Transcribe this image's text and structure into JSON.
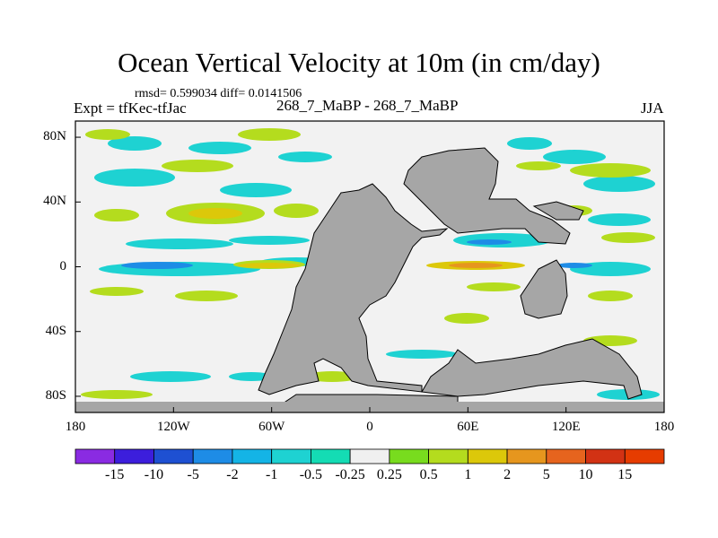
{
  "title": "Ocean Vertical Velocity at 10m (in cm/day)",
  "stats": "rmsd= 0.599034 diff= 0.0141506",
  "experiment": "Expt = tfKec-tfJac",
  "center_label": "268_7_MaBP - 268_7_MaBP",
  "season": "JJA",
  "map": {
    "lat_range": [
      -90,
      90
    ],
    "lon_range": [
      -180,
      180
    ],
    "lat_ticks": [
      "80N",
      "40N",
      "0",
      "40S",
      "80S"
    ],
    "lon_ticks": [
      "180",
      "120W",
      "60W",
      "0",
      "60E",
      "120E",
      "180"
    ],
    "land_color": "#a6a6a6",
    "ocean_background": "#f2f2f2"
  },
  "colorbar": {
    "labels": [
      "-15",
      "-10",
      "-5",
      "-2",
      "-1",
      "-0.5",
      "-0.25",
      "0.25",
      "0.5",
      "1",
      "2",
      "5",
      "10",
      "15"
    ],
    "colors": [
      "#8a2be2",
      "#3c1edc",
      "#1e50d2",
      "#1e8ce6",
      "#14b4e6",
      "#1ed2d2",
      "#14dcb4",
      "#f0f0f0",
      "#78dc1e",
      "#b4dc1e",
      "#dcc80a",
      "#e6961e",
      "#e6641e",
      "#d23214",
      "#e63c00"
    ]
  }
}
